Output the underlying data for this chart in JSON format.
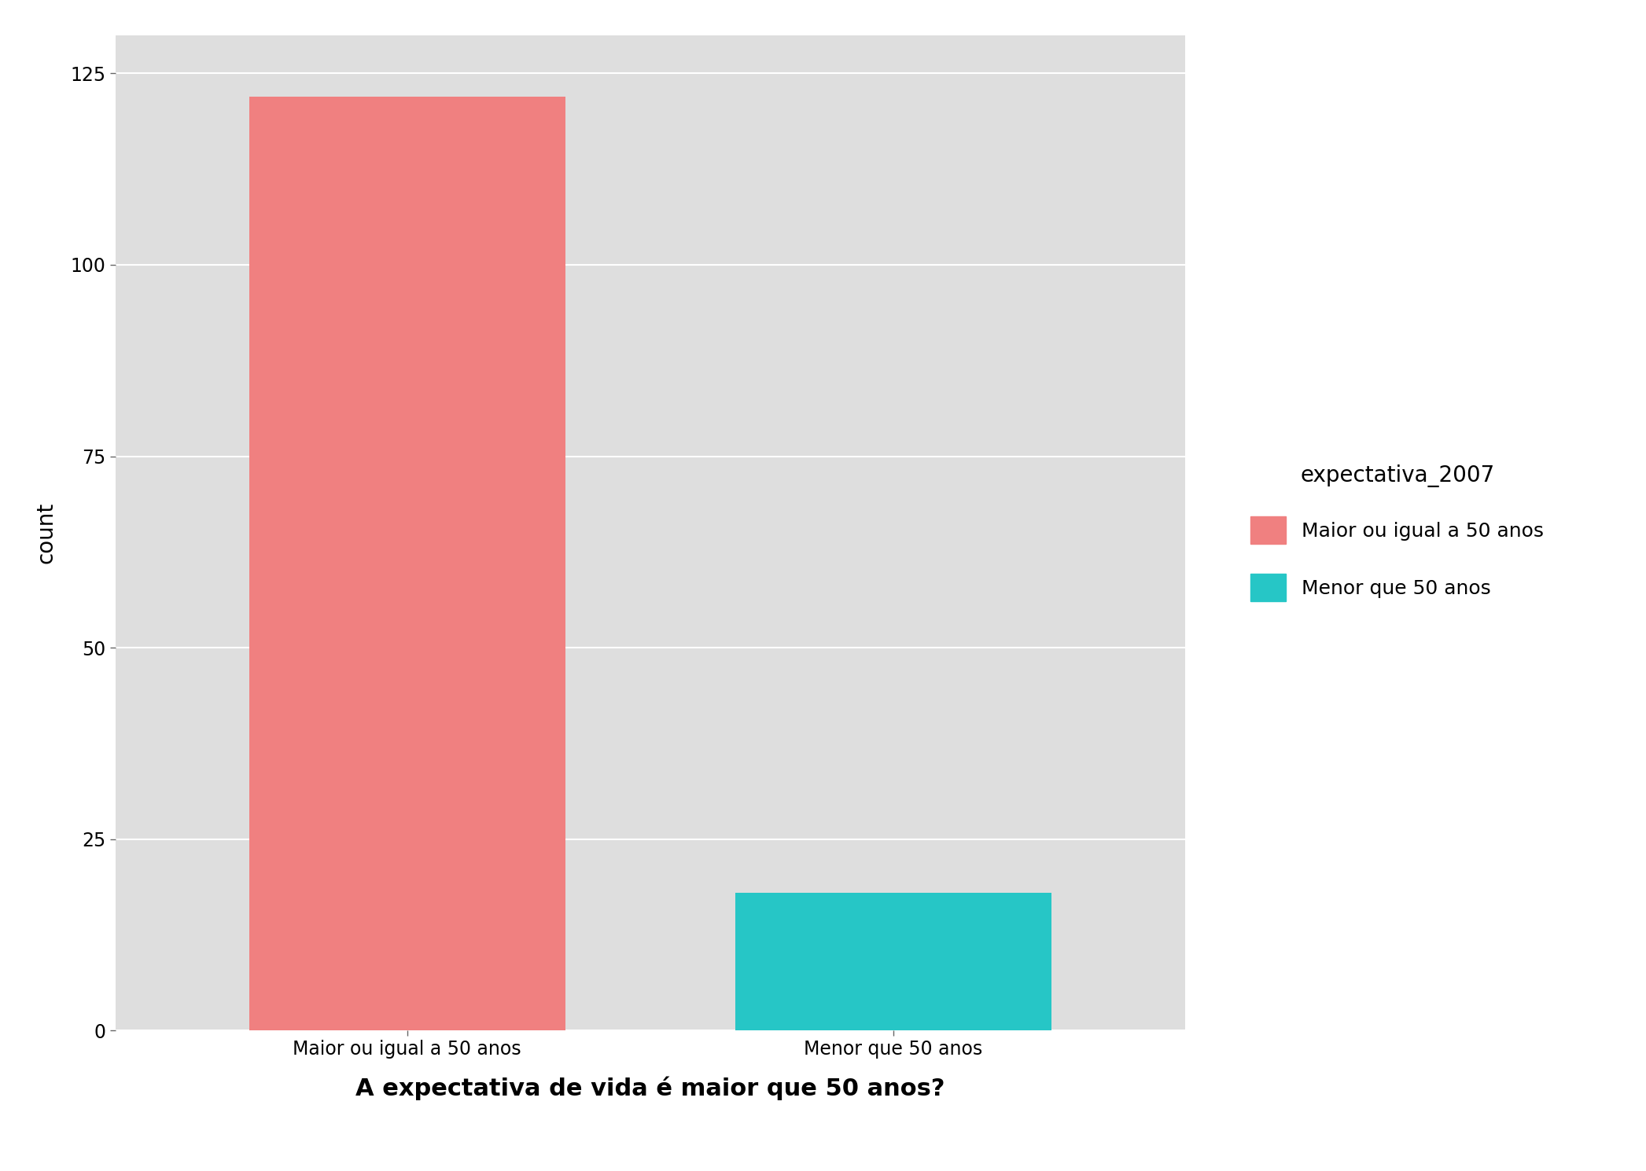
{
  "categories": [
    "Maior ou igual a 50 anos",
    "Menor que 50 anos"
  ],
  "values": [
    122,
    18
  ],
  "bar_colors": [
    "#F08080",
    "#26C6C6"
  ],
  "xlabel": "A expectativa de vida é maior que 50 anos?",
  "ylabel": "count",
  "ylim": [
    0,
    130
  ],
  "yticks": [
    0,
    25,
    50,
    75,
    100,
    125
  ],
  "figure_background": "#FFFFFF",
  "panel_background": "#DEDEDE",
  "grid_color": "#FFFFFF",
  "legend_title": "expectativa_2007",
  "legend_labels": [
    "Maior ou igual a 50 anos",
    "Menor que 50 anos"
  ],
  "legend_colors": [
    "#F08080",
    "#26C6C6"
  ],
  "axis_label_fontsize": 20,
  "xlabel_fontsize": 22,
  "tick_fontsize": 17,
  "legend_fontsize": 18,
  "legend_title_fontsize": 20,
  "bar_width": 0.65
}
